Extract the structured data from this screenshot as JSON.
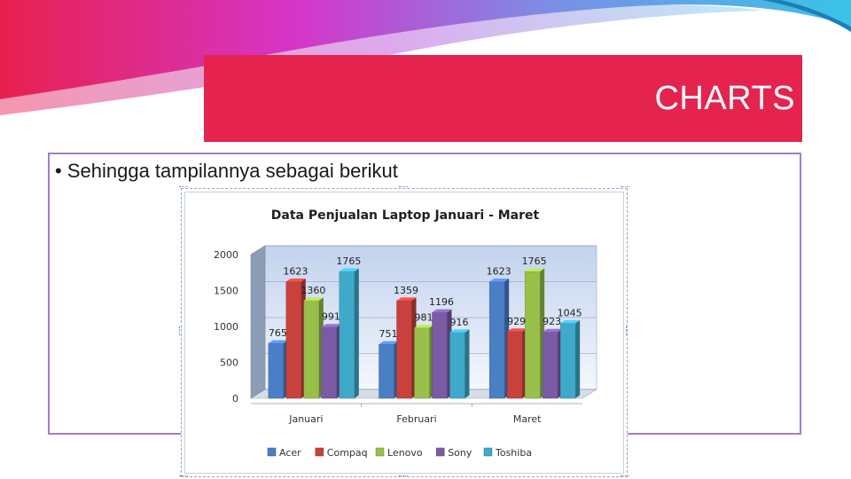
{
  "slide": {
    "title": "CHARTS",
    "bullet_symbol": "•",
    "bullet_text": "Sehingga tampilannya sebagai berikut"
  },
  "colors": {
    "title_bar": "#e4244f",
    "content_border": "#9f7fc4"
  },
  "chart_data": {
    "type": "bar",
    "title": "Data Penjualan Laptop Januari - Maret",
    "categories": [
      "Januari",
      "Februari",
      "Maret"
    ],
    "series": [
      {
        "name": "Acer",
        "values": [
          765,
          751,
          1623
        ],
        "color": "#4a7fc6"
      },
      {
        "name": "Compaq",
        "values": [
          1623,
          1359,
          929
        ],
        "color": "#c8413d"
      },
      {
        "name": "Lenovo",
        "values": [
          1360,
          981,
          1765
        ],
        "color": "#97bf4a"
      },
      {
        "name": "Sony",
        "values": [
          991,
          1196,
          923
        ],
        "color": "#7b5ba6"
      },
      {
        "name": "Toshiba",
        "values": [
          1765,
          916,
          1045
        ],
        "color": "#3fa9c9"
      }
    ],
    "yticks": [
      0,
      500,
      1000,
      1500,
      2000
    ],
    "ylim": [
      0,
      2000
    ],
    "xlabel": "",
    "ylabel": "",
    "legend_position": "bottom",
    "grid": true,
    "style": "3d-clustered-column"
  }
}
